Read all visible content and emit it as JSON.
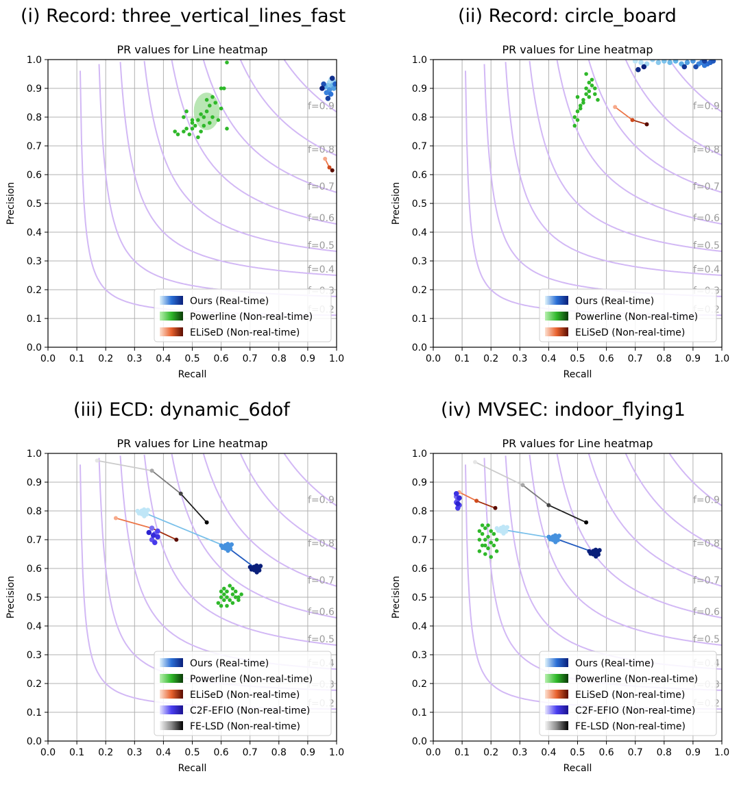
{
  "figure": {
    "panel_titles": [
      "(i) Record: three_vertical_lines_fast",
      "(ii) Record: circle_board",
      "(iii) ECD: dynamic_6dof",
      "(iv) MVSEC: indoor_flying1"
    ]
  },
  "colors": {
    "grid": "#b0b0b0",
    "iso_f": "#d2b8f5",
    "iso_label": "#9a9a9a",
    "ours": [
      "#bfe6f7",
      "#62b3e6",
      "#2a6fd6",
      "#0a1f7a"
    ],
    "powerline": "#2fb82a",
    "powerline_fill": "#9bdc94",
    "elised": [
      "#f7a98a",
      "#e8622e",
      "#b8340c",
      "#5a0c00"
    ],
    "c2f": [
      "#7b6cf0",
      "#4a3ef0",
      "#2b22d0"
    ],
    "fe_lsd": [
      "#e6e6e6",
      "#bdbdbd",
      "#7a7a7a",
      "#2a2a2a",
      "#000000"
    ]
  },
  "chart_data": [
    {
      "type": "scatter",
      "title": "PR values for Line heatmap",
      "xlabel": "Recall",
      "ylabel": "Precision",
      "xlim": [
        0,
        1
      ],
      "ylim": [
        0,
        1
      ],
      "ticks": [
        "0.0",
        "0.1",
        "0.2",
        "0.3",
        "0.4",
        "0.5",
        "0.6",
        "0.7",
        "0.8",
        "0.9",
        "1.0"
      ],
      "iso_f_values": [
        0.2,
        0.3,
        0.4,
        0.5,
        0.6,
        0.7,
        0.8,
        0.9
      ],
      "iso_f_labels": [
        "f=0.2",
        "f=0.3",
        "f=0.4",
        "f=0.5",
        "f=0.6",
        "f=0.7",
        "f=0.8",
        "f=0.9"
      ],
      "legend": [
        "Ours (Real-time)",
        "Powerline (Non-real-time)",
        "ELiSeD (Non-real-time)"
      ],
      "series": [
        {
          "name": "Ours (Real-time)",
          "kind": "cluster",
          "points": [
            [
              0.98,
              0.93
            ],
            [
              0.975,
              0.92
            ],
            [
              0.99,
              0.925
            ],
            [
              0.97,
              0.91
            ],
            [
              0.985,
              0.91
            ],
            [
              0.96,
              0.905
            ],
            [
              0.99,
              0.9
            ],
            [
              0.975,
              0.895
            ],
            [
              0.965,
              0.885
            ],
            [
              0.98,
              0.88
            ],
            [
              0.995,
              0.915
            ],
            [
              0.955,
              0.915
            ],
            [
              0.97,
              0.865
            ],
            [
              0.985,
              0.935
            ],
            [
              0.95,
              0.9
            ]
          ]
        },
        {
          "name": "Powerline (Non-real-time)",
          "kind": "scatter",
          "ellipse": {
            "cx": 0.55,
            "cy": 0.82,
            "rx": 0.045,
            "ry": 0.065
          },
          "points": [
            [
              0.44,
              0.75
            ],
            [
              0.45,
              0.74
            ],
            [
              0.47,
              0.75
            ],
            [
              0.48,
              0.76
            ],
            [
              0.49,
              0.74
            ],
            [
              0.5,
              0.78
            ],
            [
              0.5,
              0.76
            ],
            [
              0.51,
              0.77
            ],
            [
              0.52,
              0.73
            ],
            [
              0.52,
              0.79
            ],
            [
              0.53,
              0.81
            ],
            [
              0.54,
              0.8
            ],
            [
              0.55,
              0.82
            ],
            [
              0.55,
              0.86
            ],
            [
              0.56,
              0.84
            ],
            [
              0.57,
              0.87
            ],
            [
              0.57,
              0.8
            ],
            [
              0.58,
              0.85
            ],
            [
              0.59,
              0.79
            ],
            [
              0.6,
              0.83
            ],
            [
              0.6,
              0.9
            ],
            [
              0.61,
              0.9
            ],
            [
              0.62,
              0.76
            ],
            [
              0.62,
              0.99
            ],
            [
              0.47,
              0.8
            ],
            [
              0.48,
              0.82
            ],
            [
              0.5,
              0.79
            ],
            [
              0.54,
              0.77
            ],
            [
              0.56,
              0.78
            ],
            [
              0.53,
              0.75
            ]
          ]
        },
        {
          "name": "ELiSeD (Non-real-time)",
          "kind": "path",
          "points": [
            [
              0.96,
              0.655
            ],
            [
              0.975,
              0.625
            ],
            [
              0.985,
              0.615
            ]
          ]
        }
      ]
    },
    {
      "type": "scatter",
      "title": "PR values for Line heatmap",
      "xlabel": "Recall",
      "ylabel": "Precision",
      "xlim": [
        0,
        1
      ],
      "ylim": [
        0,
        1
      ],
      "ticks": [
        "0.0",
        "0.1",
        "0.2",
        "0.3",
        "0.4",
        "0.5",
        "0.6",
        "0.7",
        "0.8",
        "0.9",
        "1.0"
      ],
      "iso_f_values": [
        0.2,
        0.3,
        0.4,
        0.5,
        0.6,
        0.7,
        0.8,
        0.9
      ],
      "iso_f_labels": [
        "f=0.2",
        "f=0.3",
        "f=0.4",
        "f=0.5",
        "f=0.6",
        "f=0.7",
        "f=0.8",
        "f=0.9"
      ],
      "legend": [
        "Ours (Real-time)",
        "Powerline (Non-real-time)",
        "ELiSeD (Non-real-time)"
      ],
      "series": [
        {
          "name": "Ours (Real-time)",
          "kind": "cluster",
          "points": [
            [
              0.7,
              0.995
            ],
            [
              0.72,
              0.99
            ],
            [
              0.74,
              0.985
            ],
            [
              0.76,
              1.0
            ],
            [
              0.78,
              0.99
            ],
            [
              0.8,
              0.995
            ],
            [
              0.82,
              0.99
            ],
            [
              0.84,
              0.995
            ],
            [
              0.86,
              0.985
            ],
            [
              0.88,
              0.99
            ],
            [
              0.9,
              0.995
            ],
            [
              0.92,
              0.985
            ],
            [
              0.93,
              0.99
            ],
            [
              0.94,
              0.98
            ],
            [
              0.95,
              0.985
            ],
            [
              0.96,
              0.99
            ],
            [
              0.97,
              0.995
            ],
            [
              0.91,
              0.975
            ],
            [
              0.94,
              0.995
            ],
            [
              0.87,
              0.975
            ],
            [
              0.71,
              0.965
            ],
            [
              0.73,
              0.975
            ]
          ]
        },
        {
          "name": "Powerline (Non-real-time)",
          "kind": "scatter",
          "points": [
            [
              0.49,
              0.8
            ],
            [
              0.49,
              0.77
            ],
            [
              0.5,
              0.82
            ],
            [
              0.5,
              0.87
            ],
            [
              0.51,
              0.84
            ],
            [
              0.52,
              0.86
            ],
            [
              0.53,
              0.88
            ],
            [
              0.53,
              0.9
            ],
            [
              0.54,
              0.89
            ],
            [
              0.55,
              0.91
            ],
            [
              0.55,
              0.93
            ],
            [
              0.56,
              0.9
            ],
            [
              0.57,
              0.86
            ],
            [
              0.53,
              0.95
            ],
            [
              0.54,
              0.92
            ],
            [
              0.51,
              0.83
            ],
            [
              0.5,
              0.79
            ],
            [
              0.52,
              0.85
            ],
            [
              0.56,
              0.88
            ],
            [
              0.54,
              0.87
            ]
          ]
        },
        {
          "name": "ELiSeD (Non-real-time)",
          "kind": "path",
          "points": [
            [
              0.63,
              0.835
            ],
            [
              0.69,
              0.79
            ],
            [
              0.74,
              0.775
            ]
          ]
        }
      ]
    },
    {
      "type": "scatter",
      "title": "PR values for Line heatmap",
      "xlabel": "Recall",
      "ylabel": "Precision",
      "xlim": [
        0,
        1
      ],
      "ylim": [
        0,
        1
      ],
      "ticks": [
        "0.0",
        "0.1",
        "0.2",
        "0.3",
        "0.4",
        "0.5",
        "0.6",
        "0.7",
        "0.8",
        "0.9",
        "1.0"
      ],
      "iso_f_values": [
        0.2,
        0.3,
        0.4,
        0.5,
        0.6,
        0.7,
        0.8,
        0.9
      ],
      "iso_f_labels": [
        "f=0.2",
        "f=0.3",
        "f=0.4",
        "f=0.5",
        "f=0.6",
        "f=0.7",
        "f=0.8",
        "f=0.9"
      ],
      "legend": [
        "Ours (Real-time)",
        "Powerline (Non-real-time)",
        "ELiSeD (Non-real-time)",
        "C2F-EFIO (Non-real-time)",
        "FE-LSD (Non-real-time)"
      ],
      "series": [
        {
          "name": "Ours (Real-time)",
          "kind": "path",
          "points": [
            [
              0.33,
              0.795
            ],
            [
              0.62,
              0.675
            ],
            [
              0.72,
              0.6
            ]
          ]
        },
        {
          "name": "Powerline (Non-real-time)",
          "kind": "scatter",
          "points": [
            [
              0.59,
              0.48
            ],
            [
              0.6,
              0.5
            ],
            [
              0.6,
              0.47
            ],
            [
              0.61,
              0.51
            ],
            [
              0.61,
              0.49
            ],
            [
              0.62,
              0.52
            ],
            [
              0.62,
              0.5
            ],
            [
              0.63,
              0.54
            ],
            [
              0.63,
              0.49
            ],
            [
              0.64,
              0.51
            ],
            [
              0.64,
              0.48
            ],
            [
              0.65,
              0.5
            ],
            [
              0.65,
              0.52
            ],
            [
              0.66,
              0.49
            ],
            [
              0.66,
              0.5
            ],
            [
              0.67,
              0.51
            ],
            [
              0.61,
              0.53
            ],
            [
              0.62,
              0.47
            ],
            [
              0.64,
              0.53
            ],
            [
              0.6,
              0.52
            ]
          ]
        },
        {
          "name": "ELiSeD (Non-real-time)",
          "kind": "path",
          "points": [
            [
              0.235,
              0.775
            ],
            [
              0.36,
              0.74
            ],
            [
              0.445,
              0.7
            ]
          ]
        },
        {
          "name": "C2F-EFIO (Non-real-time)",
          "kind": "cluster",
          "points": [
            [
              0.36,
              0.74
            ],
            [
              0.37,
              0.72
            ],
            [
              0.36,
              0.7
            ],
            [
              0.38,
              0.73
            ],
            [
              0.37,
              0.69
            ],
            [
              0.38,
              0.71
            ],
            [
              0.365,
              0.715
            ],
            [
              0.35,
              0.725
            ]
          ]
        },
        {
          "name": "FE-LSD (Non-real-time)",
          "kind": "path",
          "points": [
            [
              0.17,
              0.975
            ],
            [
              0.36,
              0.94
            ],
            [
              0.46,
              0.86
            ],
            [
              0.55,
              0.76
            ]
          ]
        }
      ]
    },
    {
      "type": "scatter",
      "title": "PR values for Line heatmap",
      "xlabel": "Recall",
      "ylabel": "Precision",
      "xlim": [
        0,
        1
      ],
      "ylim": [
        0,
        1
      ],
      "ticks": [
        "0.0",
        "0.1",
        "0.2",
        "0.3",
        "0.4",
        "0.5",
        "0.6",
        "0.7",
        "0.8",
        "0.9",
        "1.0"
      ],
      "iso_f_values": [
        0.2,
        0.3,
        0.4,
        0.5,
        0.6,
        0.7,
        0.8,
        0.9
      ],
      "iso_f_labels": [
        "f=0.2",
        "f=0.3",
        "f=0.4",
        "f=0.5",
        "f=0.6",
        "f=0.7",
        "f=0.8",
        "f=0.9"
      ],
      "legend": [
        "Ours (Real-time)",
        "Powerline (Non-real-time)",
        "ELiSeD (Non-real-time)",
        "C2F-EFIO (Non-real-time)",
        "FE-LSD (Non-real-time)"
      ],
      "series": [
        {
          "name": "Ours (Real-time)",
          "kind": "path",
          "points": [
            [
              0.24,
              0.735
            ],
            [
              0.42,
              0.705
            ],
            [
              0.56,
              0.655
            ]
          ]
        },
        {
          "name": "Powerline (Non-real-time)",
          "kind": "scatter",
          "points": [
            [
              0.16,
              0.7
            ],
            [
              0.16,
              0.66
            ],
            [
              0.17,
              0.72
            ],
            [
              0.17,
              0.68
            ],
            [
              0.18,
              0.74
            ],
            [
              0.18,
              0.7
            ],
            [
              0.18,
              0.65
            ],
            [
              0.19,
              0.71
            ],
            [
              0.19,
              0.67
            ],
            [
              0.2,
              0.73
            ],
            [
              0.2,
              0.69
            ],
            [
              0.21,
              0.72
            ],
            [
              0.21,
              0.68
            ],
            [
              0.22,
              0.7
            ],
            [
              0.17,
              0.75
            ],
            [
              0.2,
              0.64
            ],
            [
              0.19,
              0.75
            ],
            [
              0.16,
              0.73
            ],
            [
              0.22,
              0.66
            ],
            [
              0.18,
              0.68
            ]
          ]
        },
        {
          "name": "ELiSeD (Non-real-time)",
          "kind": "path",
          "points": [
            [
              0.09,
              0.865
            ],
            [
              0.15,
              0.835
            ],
            [
              0.215,
              0.81
            ]
          ]
        },
        {
          "name": "C2F-EFIO (Non-real-time)",
          "kind": "cluster",
          "points": [
            [
              0.08,
              0.85
            ],
            [
              0.085,
              0.84
            ],
            [
              0.08,
              0.83
            ],
            [
              0.09,
              0.82
            ],
            [
              0.085,
              0.81
            ],
            [
              0.08,
              0.86
            ],
            [
              0.09,
              0.845
            ],
            [
              0.085,
              0.825
            ]
          ]
        },
        {
          "name": "FE-LSD (Non-real-time)",
          "kind": "path",
          "points": [
            [
              0.145,
              0.97
            ],
            [
              0.31,
              0.89
            ],
            [
              0.4,
              0.82
            ],
            [
              0.53,
              0.76
            ]
          ]
        }
      ]
    }
  ]
}
